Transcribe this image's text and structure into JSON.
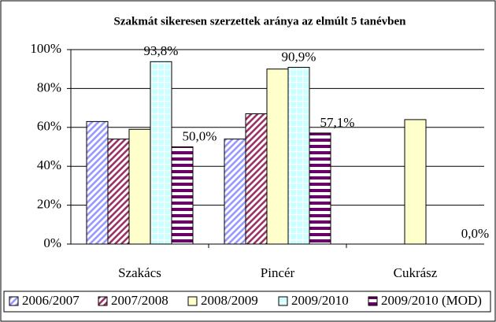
{
  "chart_data": {
    "type": "bar",
    "title": "Szakmát sikeresen szerzettek aránya az elmúlt 5 tanévben",
    "categories": [
      "Szakács",
      "Pincér",
      "Cukrász"
    ],
    "series": [
      {
        "name": "2006/2007",
        "color": "#9999ff",
        "values": [
          63,
          54,
          null
        ]
      },
      {
        "name": "2007/2008",
        "color": "#993366",
        "values": [
          54,
          67,
          null
        ]
      },
      {
        "name": "2008/2009",
        "color": "#ffffcc",
        "values": [
          59,
          90,
          64
        ]
      },
      {
        "name": "2009/2010",
        "color": "#ccffff",
        "values": [
          93.8,
          90.9,
          null
        ],
        "value_labels": [
          "93,8%",
          "90,9%",
          null
        ]
      },
      {
        "name": "2009/2010 (MOD)",
        "color": "#660066",
        "values": [
          50,
          57.1,
          0
        ],
        "value_labels": [
          "50,0%",
          "57,1%",
          "0,0%"
        ]
      }
    ],
    "ylim": [
      0,
      100
    ],
    "yticks": [
      {
        "value": 0,
        "label": "0%"
      },
      {
        "value": 20,
        "label": "20%"
      },
      {
        "value": 40,
        "label": "40%"
      },
      {
        "value": 60,
        "label": "60%"
      },
      {
        "value": 80,
        "label": "80%"
      },
      {
        "value": 100,
        "label": "100%"
      }
    ],
    "grid": true
  }
}
